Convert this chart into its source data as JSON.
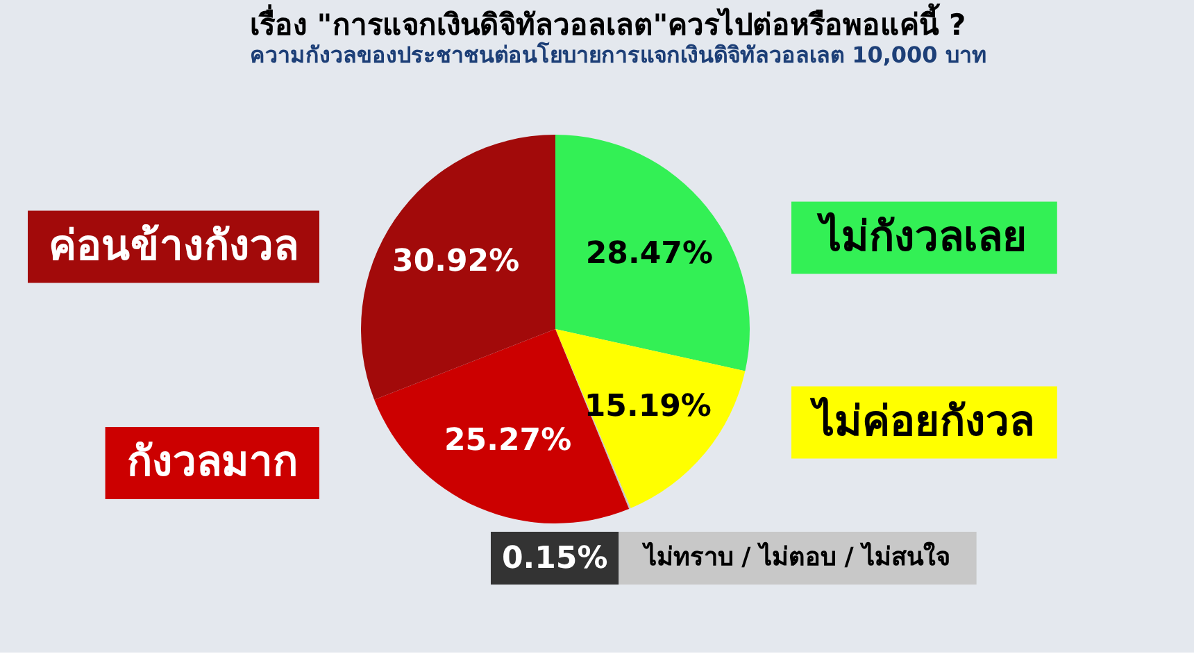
{
  "chart_data": {
    "type": "pie",
    "title": "เรื่อง \"การแจกเงินดิจิทัลวอลเลต\"ควรไปต่อหรือพอแค่นี้ ?",
    "subtitle": "ความกังวลของประชาชนต่อนโยบายการแจกเงินดิจิทัลวอลเลต 10,000 บาท",
    "categories": [
      "ไม่กังวลเลย",
      "ไม่ค่อยกังวล",
      "ไม่ทราบ / ไม่ตอบ / ไม่สนใจ",
      "กังวลมาก",
      "ค่อนข้างกังวล"
    ],
    "values": [
      28.47,
      15.19,
      0.15,
      25.27,
      30.92
    ],
    "colors": [
      "#33f055",
      "#ffff00",
      "#c8c8c8",
      "#cc0000",
      "#a20a0a"
    ],
    "value_labels": [
      "28.47%",
      "15.19%",
      "0.15%",
      "25.27%",
      "30.92%"
    ]
  }
}
